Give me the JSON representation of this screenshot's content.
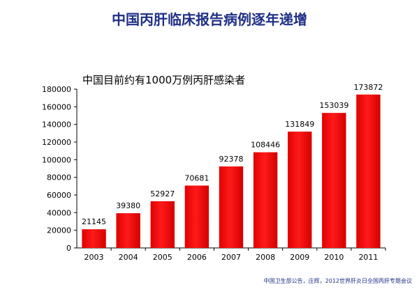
{
  "header": {
    "title": "中国丙肝临床报告病例逐年递增"
  },
  "chart_data": {
    "type": "bar",
    "title": "中国目前约有1000万例丙肝感染者",
    "xlabel": "",
    "ylabel": "",
    "categories": [
      "2003",
      "2004",
      "2005",
      "2006",
      "2007",
      "2008",
      "2009",
      "2010",
      "2011"
    ],
    "values": [
      21145,
      39380,
      52927,
      70681,
      92378,
      108446,
      131849,
      153039,
      173872
    ],
    "data_labels": [
      "21145",
      "39380",
      "52927",
      "70681",
      "92378",
      "108446",
      "131849",
      "153039",
      "173872"
    ],
    "ylim": [
      0,
      180000
    ],
    "yticks": [
      "0",
      "20000",
      "40000",
      "60000",
      "80000",
      "100000",
      "120000",
      "140000",
      "160000",
      "180000"
    ],
    "grid": false,
    "legend": "none",
    "bar_color": "#ff0000"
  },
  "footer": {
    "source": "中国卫生部公告，庄辉，2012世界肝炎日全国丙肝专题会议"
  }
}
